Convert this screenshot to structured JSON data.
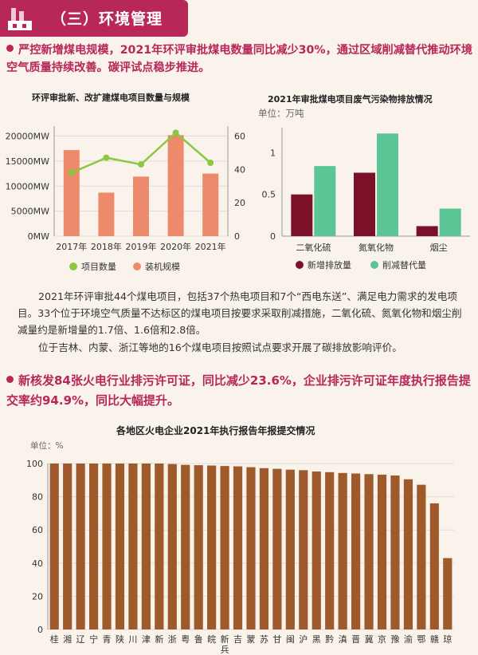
{
  "section": {
    "title": "（三）环境管理"
  },
  "headline1": {
    "text": "严控新增煤电规模，2021年环评审批煤电数量同比减少30%，通过区域削减替代推动环境空气质量持续改善。碳评试点稳步推进。"
  },
  "headline2": {
    "text": "新核发84张火电行业排污许可证，同比减少23.6%，企业排污许可证年度执行报告提交率约94.9%，同比大幅提升。"
  },
  "paragraph": {
    "p1": "2021年环评审批44个煤电项目，包括37个热电项目和7个“西电东送”、满足电力需求的发电项目。33个位于环境空气质量不达标区的煤电项目按要求采取削减措施，二氧化硫、氮氧化物和烟尘削减量约是新增量的1.7倍、1.6倍和2.8倍。",
    "p2": "位于吉林、内蒙、浙江等地的16个煤电项目按照试点要求开展了碳排放影响评价。"
  },
  "colors": {
    "accent": "#b72757",
    "green_line": "#8dc63f",
    "salmon_bar": "#ee8a6c",
    "dark_red": "#7b1029",
    "teal": "#5cc595",
    "brown": "#9e5a2a"
  },
  "chart_data": [
    {
      "type": "bar+line",
      "title": "环评审批新、改扩建煤电项目数量与规模",
      "categories": [
        "2017年",
        "2018年",
        "2019年",
        "2020年",
        "2021年"
      ],
      "series": [
        {
          "name": "装机规模",
          "kind": "bar",
          "axis": "left",
          "values": [
            17200,
            8700,
            11900,
            20200,
            12500
          ]
        },
        {
          "name": "项目数量",
          "kind": "line",
          "axis": "right",
          "values": [
            38,
            47,
            43,
            62,
            44
          ]
        }
      ],
      "left_axis": {
        "ticks": [
          "0MW",
          "5000MW",
          "10000MW",
          "15000MW",
          "20000MW"
        ],
        "ylim": [
          0,
          22000
        ]
      },
      "right_axis": {
        "ticks": [
          "0",
          "20",
          "40",
          "60"
        ],
        "ylim": [
          0,
          66
        ]
      },
      "legend": [
        "项目数量",
        "装机规模"
      ]
    },
    {
      "type": "bar",
      "title": "2021年审批煤电项目废气污染物排放情况",
      "unit": "单位：万吨",
      "categories": [
        "二氧化硫",
        "氮氧化物",
        "烟尘"
      ],
      "series": [
        {
          "name": "新增排放量",
          "values": [
            0.5,
            0.76,
            0.12
          ]
        },
        {
          "name": "削减替代量",
          "values": [
            0.84,
            1.23,
            0.33
          ]
        }
      ],
      "yticks": [
        "0",
        "0.5",
        "1"
      ],
      "ylim": [
        0,
        1.3
      ],
      "legend": [
        "新增排放量",
        "削减替代量"
      ]
    },
    {
      "type": "bar",
      "title": "各地区火电企业2021年执行报告年报提交情况",
      "unit": "单位：%",
      "categories": [
        "桂",
        "湘",
        "辽",
        "宁",
        "青",
        "陕",
        "川",
        "津",
        "新",
        "浙",
        "粤",
        "鲁",
        "皖",
        "新兵",
        "吉",
        "蒙",
        "苏",
        "甘",
        "闽",
        "沪",
        "黑",
        "黔",
        "滇",
        "晋",
        "冀",
        "京",
        "豫",
        "渝",
        "鄂",
        "赣",
        "琼"
      ],
      "values": [
        100,
        100,
        100,
        100,
        100,
        100,
        100,
        100,
        100,
        99.7,
        99.2,
        99.0,
        98.8,
        98.5,
        98.3,
        97.8,
        97.2,
        96.8,
        96.3,
        96.0,
        95.2,
        94.8,
        94.3,
        94.0,
        93.6,
        93.3,
        92.8,
        90.5,
        87.2,
        76.0,
        43.0
      ],
      "yticks": [
        "0",
        "20",
        "40",
        "60",
        "80",
        "100"
      ],
      "ylim": [
        0,
        100
      ]
    }
  ]
}
